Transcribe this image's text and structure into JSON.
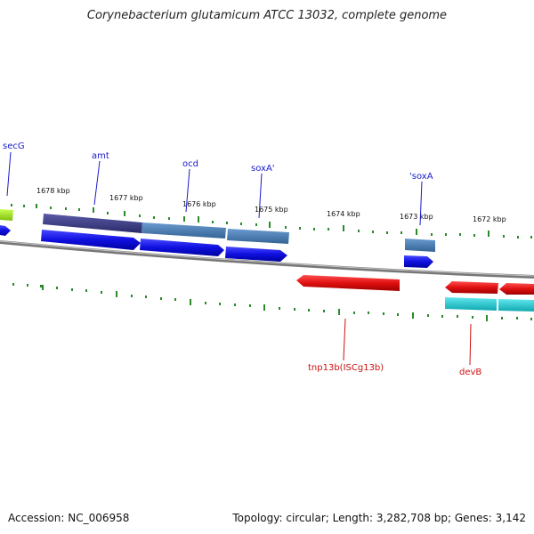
{
  "title": "Corynebacterium glutamicum ATCC 13032, complete genome",
  "footer": {
    "accession": "Accession: NC_006958",
    "summary": "Topology: circular; Length: 3,282,708 bp; Genes: 3,142"
  },
  "scale_labels": [
    "1678 kbp",
    "1677 kbp",
    "1676 kbp",
    "1675 kbp",
    "1674 kbp",
    "1673 kbp",
    "1672 kbp"
  ],
  "gene_labels": {
    "secG": "secG",
    "amt": "amt",
    "ocd": "ocd",
    "soxA_prime": "soxA'",
    "prime_soxA": "'soxA",
    "tnp13b": "tnp13b(ISCg13b)",
    "devB": "devB"
  },
  "colors": {
    "forward_cds": "#1010e0",
    "reverse_cds": "#e01010",
    "gene_dark": "#3a3a80",
    "gene_steel": "#4a7ab0",
    "gene_cyan": "#20c0c8",
    "gene_lime": "#a0e020",
    "tick": "#2a8a2a",
    "backbone": "#888888"
  }
}
